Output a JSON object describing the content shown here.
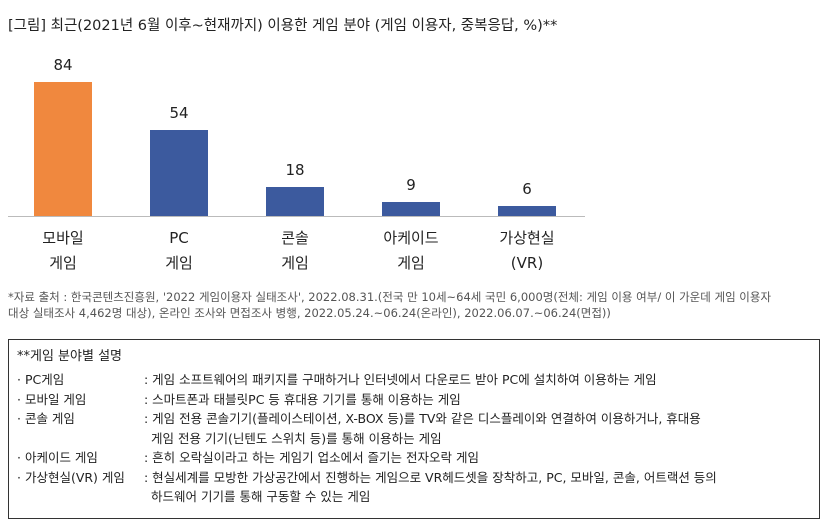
{
  "chart_data": {
    "type": "bar",
    "title": "[그림] 최근(2021년 6월 이후~현재까지) 이용한 게임 분야 (게임 이용자, 중복응답, %)**",
    "categories": [
      "모바일\n게임",
      "PC\n게임",
      "콘솔\n게임",
      "아케이드\n게임",
      "가상현실\n(VR)"
    ],
    "values": [
      84,
      54,
      18,
      9,
      6
    ],
    "colors": [
      "#f0883e",
      "#3c5a9e",
      "#3c5a9e",
      "#3c5a9e",
      "#3c5a9e"
    ],
    "ylim": [
      0,
      84
    ]
  },
  "source": "*자료 출처 : 한국콘텐츠진흥원, '2022 게임이용자 실태조사', 2022.08.31.(전국 만 10세~64세 국민 6,000명(전체: 게임 이용 여부/ 이 가운데 게임 이용자\n대상 실태조사 4,462명 대상), 온라인 조사와 면접조사 병행, 2022.05.24.~06.24(온라인), 2022.06.07.~06.24(면접))",
  "notes": {
    "title": "**게임 분야별 설명",
    "items": [
      {
        "term": "· PC게임",
        "desc": ": 게임 소프트웨어의 패키지를 구매하거나 인터넷에서 다운로드 받아 PC에 설치하여 이용하는 게임"
      },
      {
        "term": "· 모바일 게임",
        "desc": ": 스마트폰과 태블릿PC 등 휴대용 기기를 통해 이용하는 게임"
      },
      {
        "term": "· 콘솔 게임",
        "desc": ": 게임 전용 콘솔기기(플레이스테이션, X-BOX 등)를 TV와 같은 디스플레이와 연결하여 이용하거나, 휴대용\n게임 전용 기기(닌텐도 스위치 등)를 통해 이용하는 게임"
      },
      {
        "term": "· 아케이드 게임",
        "desc": ": 흔히 오락실이라고 하는 게임기 업소에서 즐기는 전자오락 게임"
      },
      {
        "term": "· 가상현실(VR) 게임",
        "desc": ": 현실세계를 모방한 가상공간에서 진행하는 게임으로 VR헤드셋을 장착하고, PC, 모바일, 콘솔, 어트랙션 등의\n하드웨어 기기를 통해 구동할 수 있는 게임"
      }
    ]
  }
}
